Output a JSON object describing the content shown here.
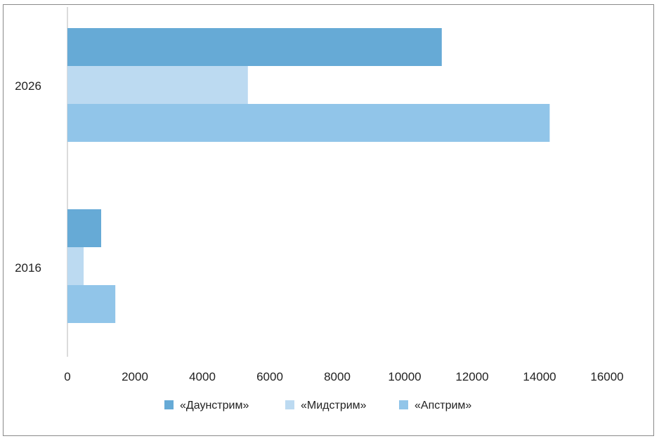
{
  "chart_data": {
    "type": "bar",
    "orientation": "horizontal",
    "categories": [
      "2026",
      "2016"
    ],
    "series": [
      {
        "name": "«Даунстрим»",
        "values": [
          11100,
          1000
        ],
        "color": "#66aad6"
      },
      {
        "name": "«Мидстрим»",
        "values": [
          5350,
          480
        ],
        "color": "#bcdaf1"
      },
      {
        "name": "«Апстрим»",
        "values": [
          14300,
          1420
        ],
        "color": "#91c5e9"
      }
    ],
    "xlim": [
      0,
      16000
    ],
    "x_ticks": [
      "0",
      "2000",
      "4000",
      "6000",
      "8000",
      "10000",
      "12000",
      "14000",
      "16000"
    ],
    "title": "",
    "xlabel": "",
    "ylabel": "",
    "grid": false,
    "legend_position": "bottom"
  }
}
